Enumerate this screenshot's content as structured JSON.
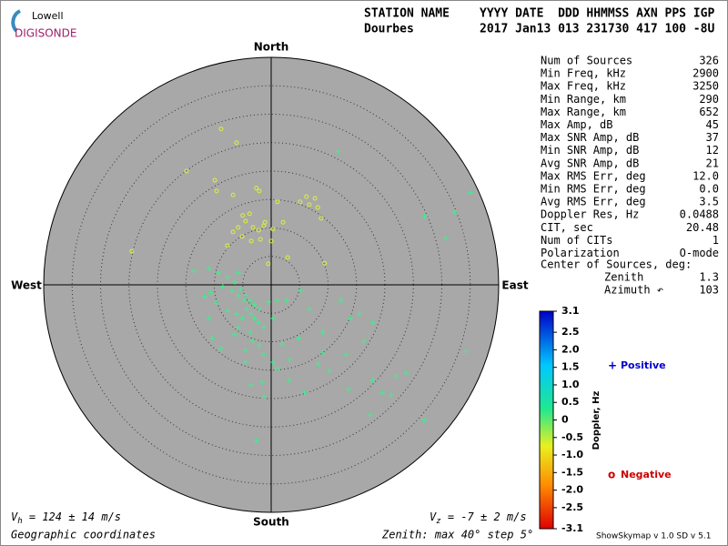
{
  "logo": {
    "top": "Lowell",
    "bottom": "DIGISONDE"
  },
  "header": {
    "row1_left": "STATION NAME",
    "row1_right": "YYYY DATE  DDD HHMMSS AXN PPS IGP",
    "row2_left": "Dourbes",
    "row2_right": "2017 Jan13 013 231730 417 100 -8U"
  },
  "parameters": [
    [
      "Num of Sources",
      "326"
    ],
    [
      "Min Freq, kHz",
      "2900"
    ],
    [
      "Max Freq, kHz",
      "3250"
    ],
    [
      "Min Range, km",
      "290"
    ],
    [
      "Max Range, km",
      "652"
    ],
    [
      "Max Amp, dB",
      "45"
    ],
    [
      "Max SNR Amp, dB",
      "37"
    ],
    [
      "Min SNR Amp, dB",
      "12"
    ],
    [
      "Avg SNR Amp, dB",
      "21"
    ],
    [
      "Max RMS Err, deg",
      "12.0"
    ],
    [
      "Min RMS Err, deg",
      "0.0"
    ],
    [
      "Avg RMS Err, deg",
      "3.5"
    ],
    [
      "Doppler Res, Hz",
      "0.0488"
    ],
    [
      "CIT, sec",
      "20.48"
    ],
    [
      "Num of CITs",
      "1"
    ],
    [
      "Polarization",
      "O-mode"
    ]
  ],
  "center": {
    "title": "Center of Sources, deg:",
    "rows": [
      [
        "Zenith",
        "1.3"
      ],
      [
        "Azimuth ↶",
        "103"
      ]
    ]
  },
  "velocities": {
    "vh": {
      "symbol": "V",
      "subscript": "h",
      "text": " = 124 ± 14 m/s"
    },
    "vz": {
      "symbol": "V",
      "subscript": "z",
      "text": " = -7 ± 2 m/s"
    }
  },
  "footer": {
    "left": "Geographic coordinates",
    "middle": "Zenith: max 40°  step 5°",
    "right": "ShowSkymap v 1.0  SD v 5.1"
  },
  "chart_data": {
    "type": "skymap",
    "directions": {
      "north": "North",
      "south": "South",
      "east": "East",
      "west": "West"
    },
    "xlim": [
      -40,
      40
    ],
    "ylim": [
      -40,
      40
    ],
    "rticks": [
      5,
      10,
      15,
      20,
      25,
      30,
      35
    ],
    "series": [
      {
        "name": "Positive",
        "color": "#3cf08c",
        "x": [
          11.8,
          35.0,
          27.0,
          32.3,
          30.7,
          -13.6,
          -10.9,
          -9.3,
          -7.7,
          -6.4,
          -5.3,
          -4.5,
          -3.7,
          -2.9,
          -2.1,
          -5.8,
          -8.5,
          -6.9,
          -5.8,
          -4.8,
          -4.2,
          -3.5,
          -2.9,
          -2.2,
          -1.3,
          -3.7,
          -3.2,
          -2.1,
          -4.5,
          -1.3,
          0.3,
          5.1,
          2.7,
          6.7,
          9.1,
          12.3,
          13.9,
          15.5,
          17.9,
          16.3,
          13.1,
          9.1,
          10.2,
          8.3,
          4.8,
          3.2,
          1.9,
          1.1,
          -8.8,
          -6.4,
          -5.8,
          -10.9,
          -10.4,
          -11.7,
          -9.6,
          -4.5,
          -3.5,
          -1.6,
          -1.3,
          3.2,
          5.9,
          13.6,
          17.9,
          19.5,
          21.9,
          23.7,
          21.1,
          17.4,
          26.9,
          -2.6,
          34.2,
          -10.6,
          -7.7,
          -6.1,
          -5.1,
          -0.5,
          1.1,
          0.3
        ],
        "values": [
          23.4,
          16.2,
          12.0,
          12.8,
          8.2,
          2.4,
          2.9,
          2.1,
          1.3,
          0.5,
          -0.8,
          -1.9,
          -2.7,
          -3.5,
          -4.3,
          2.1,
          -0.3,
          -1.1,
          -1.9,
          -2.7,
          -4.3,
          -5.1,
          -5.9,
          -6.7,
          -7.5,
          -8.3,
          -9.9,
          -10.7,
          -11.5,
          -12.3,
          -13.6,
          -1.1,
          -2.7,
          -4.3,
          -8.3,
          -2.7,
          -5.9,
          -5.1,
          -6.7,
          -9.9,
          -12.3,
          -12.0,
          -15.2,
          -13.9,
          -9.4,
          -13.1,
          -10.4,
          -14.7,
          -11.2,
          -8.8,
          -7.5,
          -5.9,
          -9.4,
          -2.1,
          -3.2,
          -13.6,
          -17.6,
          -17.1,
          -19.7,
          -16.8,
          -19.0,
          -18.4,
          -16.8,
          -19.0,
          -16.0,
          -15.5,
          -19.4,
          -22.9,
          -23.8,
          -27.4,
          -11.7,
          -1.4,
          -4.6,
          -5.1,
          -5.9,
          -3.0,
          -2.7,
          -5.9
        ]
      },
      {
        "name": "Negative",
        "color": "#e0f03c",
        "x": [
          -8.8,
          -6.1,
          -14.9,
          -9.9,
          -9.6,
          -6.7,
          -2.6,
          -2.1,
          6.2,
          6.7,
          7.7,
          8.2,
          5.1,
          1.1,
          8.8,
          2.1,
          -24.5,
          9.4,
          -5.0,
          -4.5,
          -3.8,
          -3.2,
          -5.8,
          -6.7,
          -5.1,
          -2.2,
          -1.3,
          0.3,
          0.0,
          2.9,
          -7.7,
          -3.5,
          -1.9,
          -1.1,
          -0.5
        ],
        "values": [
          27.4,
          25.0,
          20.0,
          18.4,
          16.5,
          15.8,
          17.0,
          16.5,
          15.5,
          14.1,
          15.2,
          13.6,
          14.6,
          14.6,
          11.7,
          11.0,
          5.9,
          3.8,
          12.2,
          11.2,
          12.5,
          10.1,
          10.1,
          9.3,
          8.5,
          9.6,
          10.4,
          9.8,
          7.7,
          4.8,
          6.9,
          7.7,
          8.0,
          11.0,
          3.7
        ]
      }
    ],
    "legend_colors": [
      "#0000cc",
      "#cc0000"
    ],
    "colorbar": {
      "label": "Doppler, Hz",
      "lim": [
        -3.1,
        3.1
      ],
      "ticks": [
        3.1,
        2.5,
        {
          "value": 2.0,
          "label": "2.0"
        },
        1.5,
        {
          "value": 1.0,
          "label": "1.0"
        },
        0.5,
        0,
        -0.5,
        {
          "value": -1.0,
          "label": "-1.0"
        },
        -1.5,
        {
          "value": -2.0,
          "label": "-2.0"
        },
        -2.5,
        -3.1
      ]
    }
  }
}
